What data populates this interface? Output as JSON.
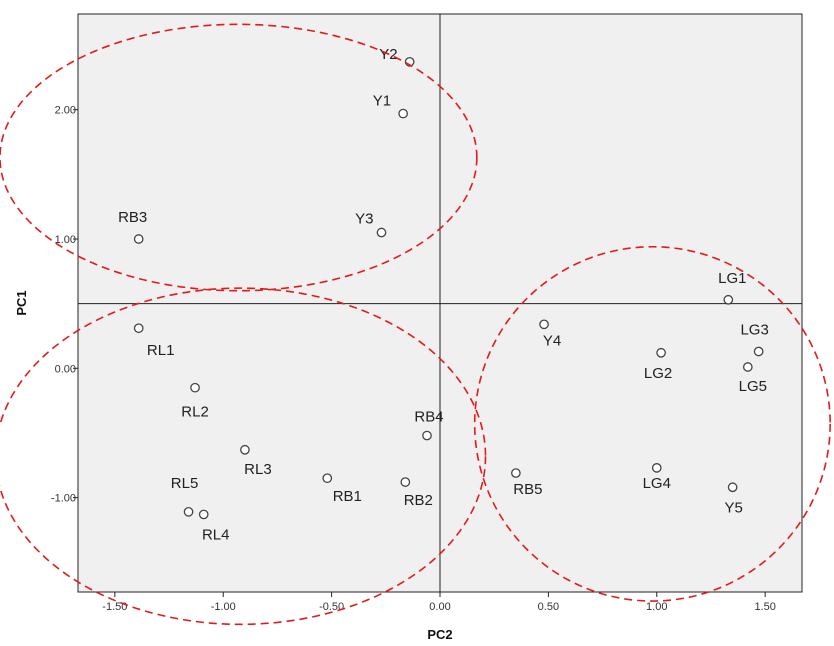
{
  "chart_data": {
    "type": "scatter",
    "xlabel": "PC2",
    "ylabel": "PC1",
    "xlim": [
      -1.67,
      1.67
    ],
    "ylim": [
      -1.73,
      2.74
    ],
    "xticks": [
      -1.5,
      -1.0,
      -0.5,
      0.0,
      0.5,
      1.0,
      1.5
    ],
    "xtick_labels": [
      "-1.50",
      "-1.00",
      "-0.50",
      "0.00",
      "0.50",
      "1.00",
      "1.50"
    ],
    "yticks": [
      -1.0,
      0.0,
      1.0,
      2.0
    ],
    "ytick_labels": [
      "-1.00",
      "0.00",
      "1.00",
      "2.00"
    ],
    "reference_lines": {
      "x": 0.0,
      "y": 0.5
    },
    "grid": false,
    "points": [
      {
        "label": "Y2",
        "x": -0.14,
        "y": 2.37
      },
      {
        "label": "Y1",
        "x": -0.17,
        "y": 1.97
      },
      {
        "label": "Y3",
        "x": -0.27,
        "y": 1.05
      },
      {
        "label": "RB3",
        "x": -1.39,
        "y": 1.0
      },
      {
        "label": "LG1",
        "x": 1.33,
        "y": 0.53
      },
      {
        "label": "Y4",
        "x": 0.48,
        "y": 0.34
      },
      {
        "label": "LG3",
        "x": 1.47,
        "y": 0.13
      },
      {
        "label": "LG2",
        "x": 1.02,
        "y": 0.12
      },
      {
        "label": "LG5",
        "x": 1.42,
        "y": 0.01
      },
      {
        "label": "RL1",
        "x": -1.39,
        "y": 0.31
      },
      {
        "label": "RL2",
        "x": -1.13,
        "y": -0.15
      },
      {
        "label": "RB4",
        "x": -0.06,
        "y": -0.52
      },
      {
        "label": "RL3",
        "x": -0.9,
        "y": -0.63
      },
      {
        "label": "RB1",
        "x": -0.52,
        "y": -0.85
      },
      {
        "label": "RB2",
        "x": -0.16,
        "y": -0.88
      },
      {
        "label": "RB5",
        "x": 0.35,
        "y": -0.81
      },
      {
        "label": "LG4",
        "x": 1.0,
        "y": -0.77
      },
      {
        "label": "Y5",
        "x": 1.35,
        "y": -0.92
      },
      {
        "label": "RL5",
        "x": -1.16,
        "y": -1.11
      },
      {
        "label": "RL4",
        "x": -1.09,
        "y": -1.13
      }
    ],
    "clusters": [
      {
        "cx": -0.93,
        "cy": 1.63,
        "rx": 1.1,
        "ry": 1.03
      },
      {
        "cx": -0.92,
        "cy": -0.68,
        "rx": 1.13,
        "ry": 1.3
      },
      {
        "cx": 0.98,
        "cy": -0.43,
        "rx": 0.82,
        "ry": 1.37
      }
    ]
  }
}
